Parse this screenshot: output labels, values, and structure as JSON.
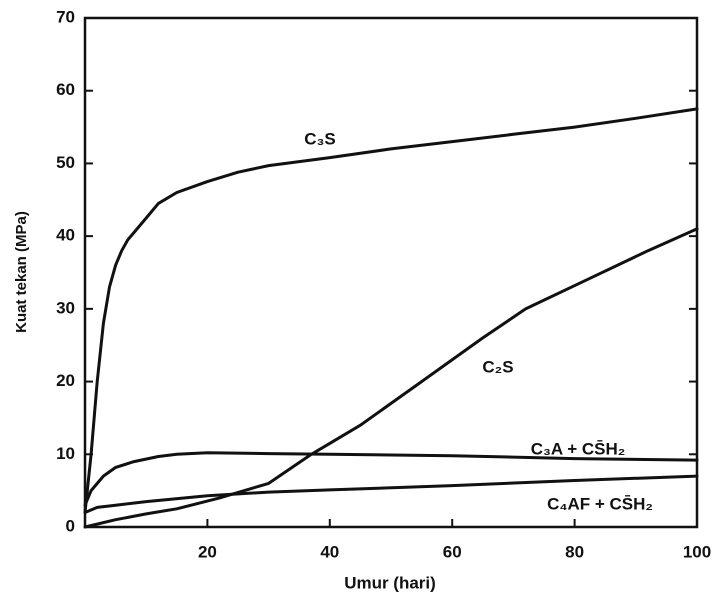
{
  "chart_data": {
    "type": "line",
    "x_label": "Umur (hari)",
    "y_label": "Kuat tekan (MPa)",
    "xlim": [
      0,
      100
    ],
    "ylim": [
      0,
      70
    ],
    "xticks": [
      20,
      40,
      60,
      80,
      100
    ],
    "yticks": [
      0,
      10,
      20,
      30,
      40,
      50,
      60,
      70
    ],
    "series": [
      {
        "name": "C₃S",
        "color": "#111111",
        "x": [
          0,
          1,
          2,
          3,
          4,
          5,
          6,
          7,
          8,
          10,
          12,
          15,
          20,
          25,
          30,
          40,
          50,
          60,
          70,
          80,
          90,
          100
        ],
        "values": [
          2,
          10,
          20,
          28,
          33,
          36,
          38,
          39.5,
          40.5,
          42.5,
          44.5,
          46,
          47.5,
          48.8,
          49.7,
          50.8,
          52,
          53,
          54,
          55,
          56.2,
          57.5
        ]
      },
      {
        "name": "C₂S",
        "color": "#111111",
        "x": [
          0,
          5,
          10,
          15,
          22,
          30,
          37,
          45,
          55,
          65,
          72,
          82,
          92,
          100
        ],
        "values": [
          0,
          1,
          1.8,
          2.5,
          4,
          6,
          10,
          14,
          20,
          26,
          30,
          34,
          38,
          41
        ]
      },
      {
        "name": "C₃A + CS̄H₂",
        "color": "#111111",
        "x": [
          0,
          1,
          3,
          5,
          8,
          12,
          15,
          20,
          30,
          40,
          60,
          80,
          100
        ],
        "values": [
          3,
          5,
          7,
          8.2,
          9,
          9.7,
          10,
          10.2,
          10.1,
          10,
          9.8,
          9.4,
          9.2
        ]
      },
      {
        "name": "C₄AF + CS̄H₂",
        "color": "#111111",
        "x": [
          0,
          2,
          5,
          10,
          20,
          30,
          40,
          60,
          80,
          100
        ],
        "values": [
          2,
          2.7,
          3,
          3.5,
          4.3,
          4.8,
          5.1,
          5.7,
          6.4,
          7
        ]
      }
    ]
  }
}
